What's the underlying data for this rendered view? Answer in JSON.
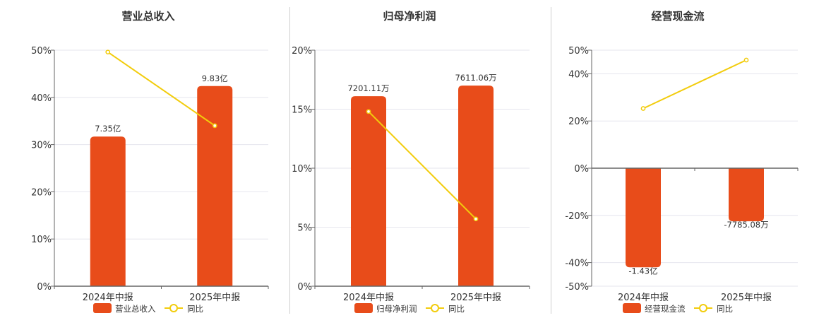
{
  "colors": {
    "bar": "#e84c1a",
    "line": "#f2cc0c",
    "grid": "#e6e6ee",
    "axis": "#666666"
  },
  "chart_data": [
    {
      "type": "bar",
      "title": "营业总收入",
      "categories": [
        "2024年中报",
        "2025年中报"
      ],
      "series": [
        {
          "name": "营业总收入",
          "type": "bar",
          "values": [
            31.7,
            42.4
          ],
          "labels": [
            "7.35亿",
            "9.83亿"
          ]
        },
        {
          "name": "同比",
          "type": "line",
          "values": [
            49.6,
            34.0
          ]
        }
      ],
      "ylim": [
        0,
        50
      ],
      "yticks": [
        0,
        10,
        20,
        30,
        40,
        50
      ],
      "ytick_labels": [
        "0%",
        "10%",
        "20%",
        "30%",
        "40%",
        "50%"
      ],
      "legend": "bottom",
      "grid": true
    },
    {
      "type": "bar",
      "title": "归母净利润",
      "categories": [
        "2024年中报",
        "2025年中报"
      ],
      "series": [
        {
          "name": "归母净利润",
          "type": "bar",
          "values": [
            16.1,
            17.0
          ],
          "labels": [
            "7201.11万",
            "7611.06万"
          ]
        },
        {
          "name": "同比",
          "type": "line",
          "values": [
            14.8,
            5.7
          ]
        }
      ],
      "ylim": [
        0,
        20
      ],
      "yticks": [
        0,
        5,
        10,
        15,
        20
      ],
      "ytick_labels": [
        "0%",
        "5%",
        "10%",
        "15%",
        "20%"
      ],
      "legend": "bottom",
      "grid": true
    },
    {
      "type": "bar",
      "title": "经营现金流",
      "categories": [
        "2024年中报",
        "2025年中报"
      ],
      "series": [
        {
          "name": "经营现金流",
          "type": "bar",
          "values": [
            -42.0,
            -22.5
          ],
          "labels": [
            "-1.43亿",
            "-7785.08万"
          ]
        },
        {
          "name": "同比",
          "type": "line",
          "values": [
            25.3,
            45.8
          ]
        }
      ],
      "ylim": [
        -50,
        50
      ],
      "yticks": [
        -50,
        -40,
        -20,
        0,
        20,
        40,
        50
      ],
      "ytick_labels": [
        "-50%",
        "-40%",
        "-20%",
        "0%",
        "20%",
        "40%",
        "50%"
      ],
      "legend": "bottom",
      "grid": true
    }
  ]
}
